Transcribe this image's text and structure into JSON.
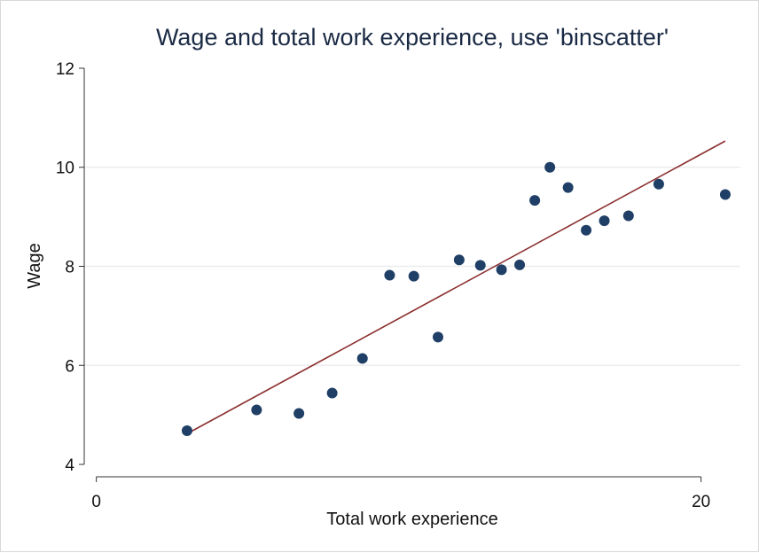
{
  "chart_data": {
    "type": "scatter",
    "title": "Wage and total work experience, use 'binscatter'",
    "xlabel": "Total work experience",
    "ylabel": "Wage",
    "xlim": [
      -0.4,
      21.3
    ],
    "ylim": [
      3.75,
      12.25
    ],
    "xticks": [
      0,
      20
    ],
    "yticks": [
      4,
      6,
      8,
      10,
      12
    ],
    "grid": true,
    "legend": "none",
    "colors": {
      "points": "#1f3f66",
      "fit_line": "#8b2f2f"
    },
    "points": {
      "x": [
        3.0,
        5.3,
        6.7,
        7.8,
        8.8,
        9.7,
        10.5,
        11.3,
        12.0,
        12.7,
        13.4,
        14.0,
        14.5,
        15.0,
        15.6,
        16.2,
        16.8,
        17.6,
        18.6,
        20.8
      ],
      "y": [
        4.68,
        5.1,
        5.03,
        5.44,
        6.14,
        7.82,
        7.8,
        6.57,
        8.13,
        8.02,
        7.93,
        8.03,
        9.33,
        10.0,
        9.59,
        8.73,
        8.92,
        9.02,
        9.66,
        9.45
      ]
    },
    "fit_line": {
      "x": [
        3.0,
        20.8
      ],
      "y": [
        4.62,
        10.53
      ]
    }
  }
}
